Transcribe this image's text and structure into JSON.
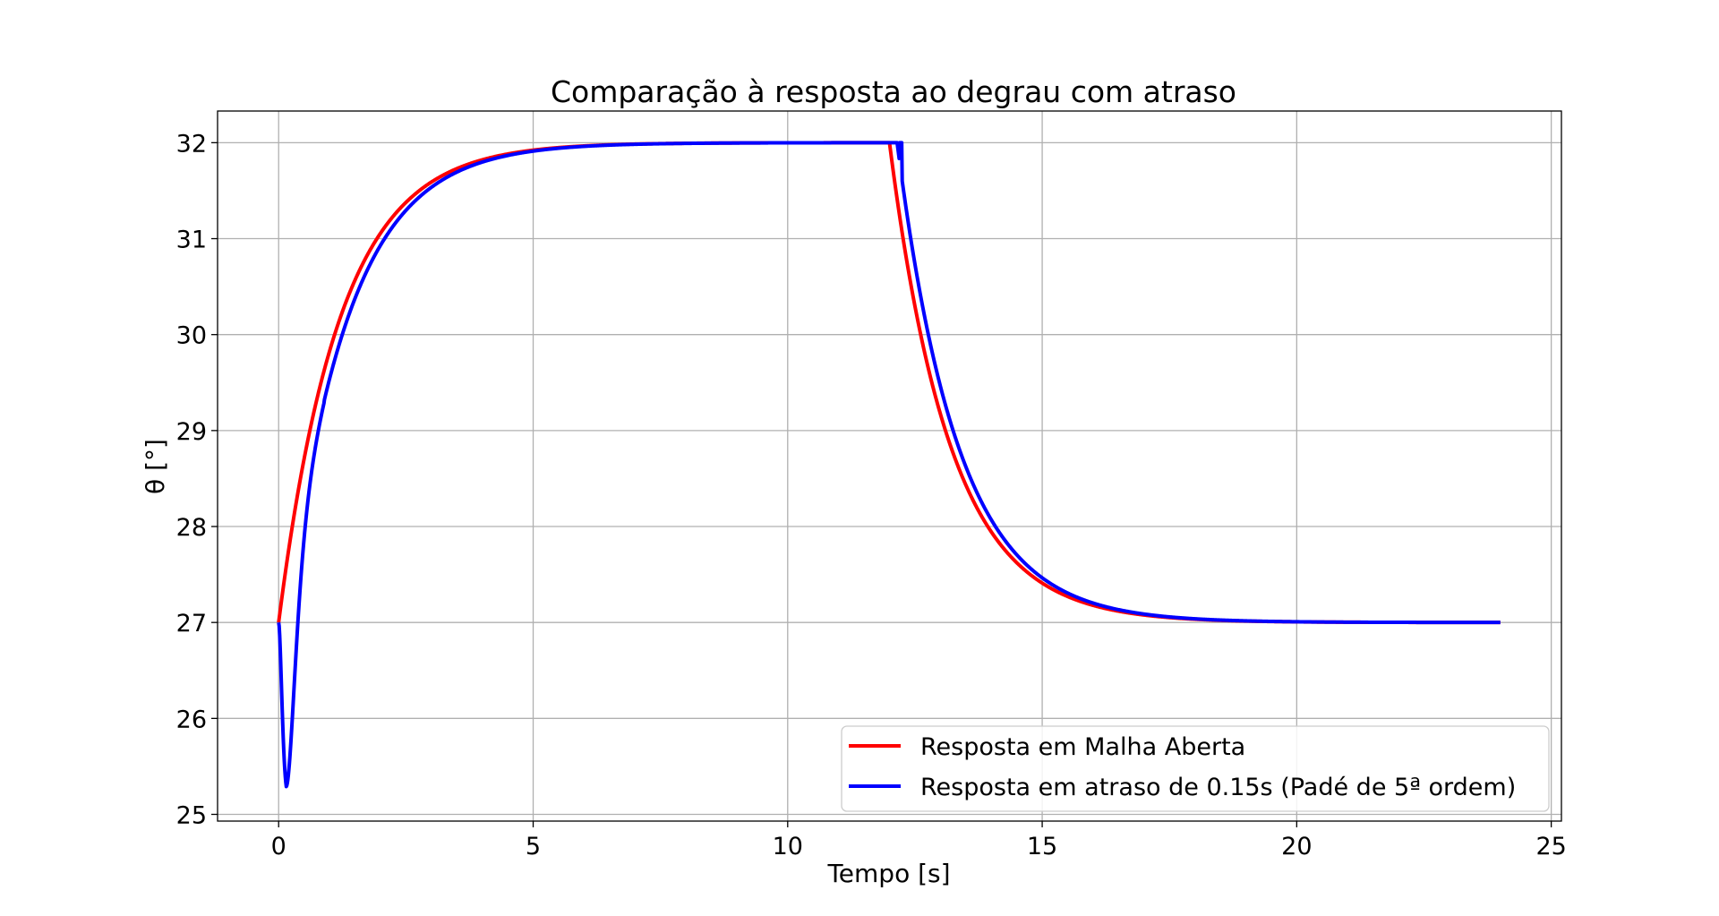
{
  "chart_data": {
    "type": "line",
    "title": "Comparação à resposta ao degrau com atraso",
    "xlabel": "Tempo [s]",
    "ylabel": "θ [°]",
    "xlim": [
      -1.2,
      25.2
    ],
    "ylim": [
      24.93,
      32.33
    ],
    "xticks": [
      0,
      5,
      10,
      15,
      20,
      25
    ],
    "yticks": [
      25,
      26,
      27,
      28,
      29,
      30,
      31,
      32
    ],
    "grid": true,
    "legend_position": "lower right",
    "model": {
      "initial_temperature": 27,
      "step_amplitude": 5,
      "time_constant": 1.2,
      "step_off_time": 12,
      "end_time": 24,
      "delay": 0.15,
      "pade_order": 5,
      "pade_initial_undershoot": 25.27
    },
    "series": [
      {
        "name": "Resposta em Malha Aberta",
        "color": "#ff0000",
        "x": [
          0,
          0.25,
          0.5,
          0.75,
          1,
          1.5,
          2,
          2.5,
          3,
          3.5,
          4,
          5,
          6,
          7,
          8,
          10,
          11.99,
          12,
          12.25,
          12.5,
          12.75,
          13,
          13.5,
          14,
          14.5,
          15,
          15.5,
          16,
          17,
          18,
          19,
          20,
          22,
          24
        ],
        "values": [
          27,
          27.94,
          28.7,
          29.33,
          29.83,
          30.57,
          31.06,
          31.39,
          31.59,
          31.73,
          31.82,
          31.92,
          31.97,
          31.99,
          31.99,
          32.0,
          32.0,
          32.0,
          31.06,
          30.3,
          29.67,
          29.17,
          28.43,
          27.94,
          27.61,
          27.41,
          27.27,
          27.18,
          27.08,
          27.03,
          27.02,
          27.01,
          27.0,
          27.0
        ]
      },
      {
        "name": "Resposta em atraso de 0.15s (Padé de 5ª ordem)",
        "color": "#0000ff",
        "x": [
          0,
          0.05,
          0.1,
          0.15,
          0.18,
          0.22,
          0.3,
          0.4,
          0.5,
          0.75,
          1,
          1.25,
          1.5,
          2,
          2.5,
          3,
          3.5,
          4,
          5,
          6,
          7,
          8,
          10,
          12,
          12.05,
          12.1,
          12.15,
          12.2,
          12.3,
          12.4,
          12.5,
          12.75,
          13,
          13.5,
          14,
          14.5,
          15,
          15.5,
          16,
          17,
          18,
          19,
          20,
          22,
          24
        ],
        "values": [
          27,
          26.75,
          26.2,
          25.55,
          25.27,
          25.45,
          26.0,
          26.65,
          27.2,
          28.4,
          29.2,
          29.85,
          30.35,
          30.95,
          31.32,
          31.55,
          31.7,
          31.79,
          31.91,
          31.96,
          31.98,
          31.99,
          32.0,
          32.0,
          32.0,
          32.0,
          32.0,
          31.98,
          31.6,
          31.25,
          30.95,
          30.3,
          29.75,
          28.9,
          28.3,
          27.85,
          27.58,
          27.38,
          27.25,
          27.11,
          27.05,
          27.02,
          27.01,
          27.0,
          27.0
        ]
      }
    ]
  }
}
